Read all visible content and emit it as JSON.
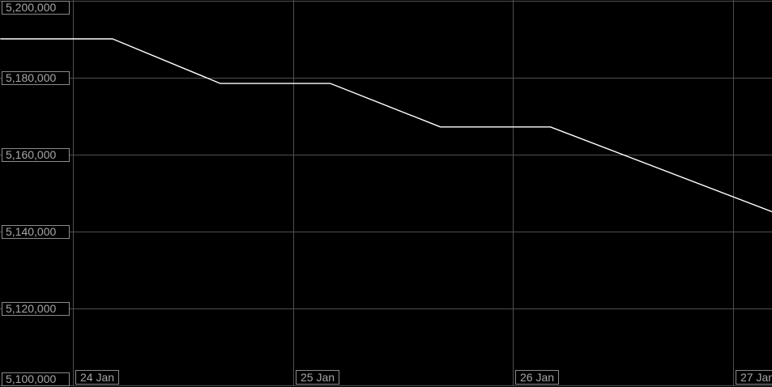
{
  "chart_data": {
    "type": "line",
    "title": "",
    "xlabel": "",
    "ylabel": "",
    "grid": true,
    "legend": false,
    "ylim": [
      5100000,
      5200000
    ],
    "xlim_days": [
      -0.33,
      3.18
    ],
    "x_unit_note": "t is measured in days after 24 Jan 00:00",
    "y_ticks": [
      {
        "value": 5200000,
        "label": "5,200,000"
      },
      {
        "value": 5180000,
        "label": "5,180,000"
      },
      {
        "value": 5160000,
        "label": "5,160,000"
      },
      {
        "value": 5140000,
        "label": "5,140,000"
      },
      {
        "value": 5120000,
        "label": "5,120,000"
      },
      {
        "value": 5100000,
        "label": "5,100,000"
      }
    ],
    "x_ticks": [
      {
        "pos": 0,
        "label": "24 Jan"
      },
      {
        "pos": 1,
        "label": "25 Jan"
      },
      {
        "pos": 2,
        "label": "26 Jan"
      },
      {
        "pos": 3,
        "label": "27 Jan"
      }
    ],
    "series": [
      {
        "name": "value",
        "color": "#ffffff",
        "points": [
          {
            "t": -0.33,
            "value": 5190100
          },
          {
            "t": 0.18,
            "value": 5190100
          },
          {
            "t": 0.67,
            "value": 5178500
          },
          {
            "t": 1.17,
            "value": 5178500
          },
          {
            "t": 1.67,
            "value": 5167200
          },
          {
            "t": 2.17,
            "value": 5167200
          },
          {
            "t": 3.18,
            "value": 5145100
          }
        ]
      }
    ],
    "colors": {
      "background": "#000000",
      "grid": "#4f4f4f",
      "tick_box_border": "#8a8a8a",
      "tick_text": "#a6a6a6",
      "line": "#ffffff"
    }
  }
}
